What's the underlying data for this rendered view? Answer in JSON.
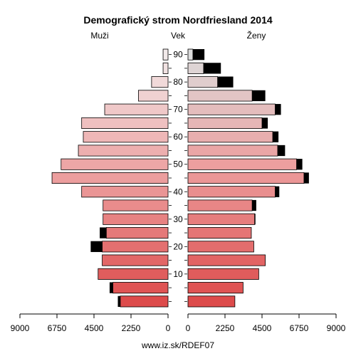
{
  "chart_data": {
    "type": "bar",
    "orientation": "horizontal-pyramid",
    "title": "Demografický strom Nordfriesland 2014",
    "left_label": "Muži",
    "center_label": "Vek",
    "right_label": "Ženy",
    "footer": "www.iz.sk/RDEF07",
    "age_groups": [
      "0-4",
      "5-9",
      "10-14",
      "15-19",
      "20-24",
      "25-29",
      "30-34",
      "35-39",
      "40-44",
      "45-49",
      "50-54",
      "55-59",
      "60-64",
      "65-69",
      "70-74",
      "75-79",
      "80-84",
      "85-89",
      "90+"
    ],
    "age_tick_labels": [
      {
        "group_index": 2,
        "label": "10"
      },
      {
        "group_index": 4,
        "label": "20"
      },
      {
        "group_index": 6,
        "label": "30"
      },
      {
        "group_index": 8,
        "label": "40"
      },
      {
        "group_index": 10,
        "label": "50"
      },
      {
        "group_index": 12,
        "label": "60"
      },
      {
        "group_index": 14,
        "label": "70"
      },
      {
        "group_index": 16,
        "label": "80"
      },
      {
        "group_index": 18,
        "label": "90"
      }
    ],
    "x_axis_ticks_left": [
      "9000",
      "6750",
      "4500",
      "2250",
      "0"
    ],
    "x_axis_ticks_right": [
      "0",
      "2250",
      "4500",
      "6750",
      "9000"
    ],
    "xlim": [
      0,
      9000
    ],
    "series": [
      {
        "side": "male",
        "values": [
          2900,
          3350,
          4250,
          4000,
          4000,
          3750,
          3950,
          3950,
          5250,
          7050,
          6500,
          5450,
          5150,
          5250,
          3850,
          1800,
          1000,
          300,
          300
        ],
        "excess": [
          150,
          200,
          0,
          0,
          700,
          400,
          0,
          0,
          0,
          0,
          0,
          0,
          0,
          0,
          0,
          0,
          0,
          0,
          0
        ]
      },
      {
        "side": "female",
        "values": [
          2850,
          3350,
          4300,
          4700,
          4000,
          3850,
          4050,
          3900,
          5300,
          7050,
          6600,
          5450,
          5150,
          4500,
          5300,
          3900,
          1800,
          950,
          300
        ],
        "excess": [
          0,
          0,
          0,
          0,
          0,
          0,
          50,
          250,
          250,
          300,
          350,
          450,
          350,
          350,
          350,
          800,
          950,
          1050,
          700
        ]
      }
    ],
    "colors": {
      "excess": "#000000",
      "bar_stroke": "#000000",
      "gradient_young": "#dd4b4b",
      "gradient_mid": "#ec9e9e",
      "gradient_old": "#f2eaea",
      "female_old": "#dcdcdc"
    },
    "grid": false
  }
}
